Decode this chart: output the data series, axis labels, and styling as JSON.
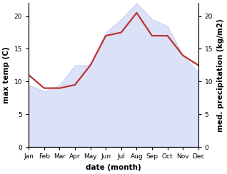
{
  "months": [
    "Jan",
    "Feb",
    "Mar",
    "Apr",
    "May",
    "Jun",
    "Jul",
    "Aug",
    "Sep",
    "Oct",
    "Nov",
    "Dec"
  ],
  "max_temp": [
    9.5,
    8.5,
    9.5,
    12.5,
    12.5,
    17.5,
    19.5,
    22.0,
    19.5,
    18.5,
    14.0,
    11.5
  ],
  "med_precip": [
    11.0,
    9.0,
    9.0,
    9.5,
    12.5,
    17.0,
    17.5,
    20.5,
    17.0,
    17.0,
    14.0,
    12.5
  ],
  "fill_color": "#b8c4f0",
  "line_color": "#bb3333",
  "left_ylabel": "max temp (C)",
  "right_ylabel": "med. precipitation (kg/m2)",
  "xlabel": "date (month)",
  "ylim": [
    0,
    22
  ],
  "yticks": [
    0,
    5,
    10,
    15,
    20
  ],
  "right_yticks": [
    0,
    5,
    10,
    15,
    20
  ],
  "right_ylabels": [
    "0",
    "5",
    "10",
    "15",
    "20"
  ],
  "bg_color": "#ffffff",
  "fill_alpha": 0.5,
  "line_width": 1.6,
  "label_fontsize": 7.5,
  "tick_fontsize": 6.5,
  "ylabel_fontsize": 7.5
}
